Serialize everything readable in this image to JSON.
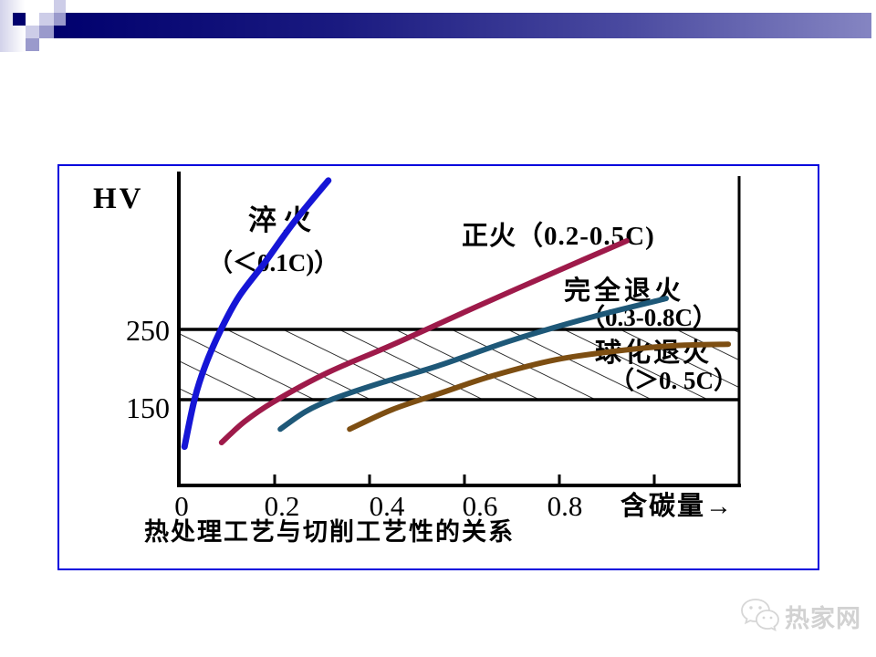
{
  "chart_data": {
    "type": "line",
    "title": "热处理工艺与切削工艺性的关系",
    "ylabel": "HV",
    "xlabel": "含碳量→",
    "x_tick_labels": [
      "0",
      "0.2",
      "0.4",
      "0.6",
      "0.8"
    ],
    "y_tick_labels": [
      "250",
      "150"
    ],
    "axis_ranges": {
      "x_carbon": [
        0,
        1.2
      ],
      "y_hv_marked": [
        150,
        250
      ]
    },
    "machinable_band": {
      "hv_min": 150,
      "hv_max": 250,
      "style": "diagonal-hatch"
    },
    "legend_position": "labels-on-curves",
    "grid": false,
    "series": [
      {
        "name": "淬火",
        "range_label": "（＜0.1C)）",
        "color": "#1515d6",
        "x": [
          0.01,
          0.031,
          0.054,
          0.087,
          0.125,
          0.179,
          0.24,
          0.313
        ],
        "hv": [
          83,
          150,
          199,
          250,
          297,
          345,
          402,
          462
        ]
      },
      {
        "name": "正火",
        "range_label": "（0.2-0.5C)",
        "color": "#9e1a4a",
        "x": [
          0.088,
          0.137,
          0.198,
          0.313,
          0.448,
          0.621,
          0.775,
          0.942
        ],
        "hv": [
          89,
          119,
          147,
          189,
          228,
          281,
          327,
          376
        ]
      },
      {
        "name": "完全退火",
        "range_label": "（0.3-0.8C）",
        "color": "#1e5878",
        "x": [
          0.212,
          0.265,
          0.323,
          0.429,
          0.544,
          0.698,
          0.871,
          1.025
        ],
        "hv": [
          108,
          133,
          151,
          175,
          198,
          234,
          268,
          294
        ]
      },
      {
        "name": "球化退火",
        "range_label": "（＞0. 5C）",
        "color": "#7d4e12",
        "x": [
          0.358,
          0.448,
          0.544,
          0.66,
          0.794,
          0.929,
          1.044,
          1.156
        ],
        "hv": [
          108,
          136,
          158,
          184,
          207,
          220,
          227,
          229
        ]
      }
    ]
  },
  "colors": {
    "header_navy": "#00006e",
    "header_lavender_light": "#cdcde8",
    "header_lavender_medium": "#9a9acc",
    "chart_border_blue": "#0000dd",
    "axis_black": "#000000"
  },
  "watermark": {
    "text": "热家网",
    "icon": "wechat-bubbles-icon"
  }
}
